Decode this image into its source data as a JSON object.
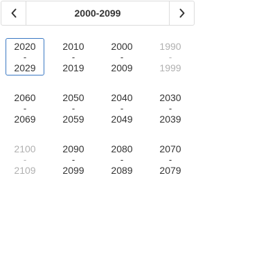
{
  "header": {
    "title": "2000-2099",
    "prev_icon": "chevron-left-icon",
    "next_icon": "chevron-right-icon"
  },
  "decades": [
    [
      {
        "start": "2020",
        "sep": "-",
        "end": "2029",
        "selected": true,
        "muted": false
      },
      {
        "start": "2010",
        "sep": "-",
        "end": "2019",
        "selected": false,
        "muted": false
      },
      {
        "start": "2000",
        "sep": "-",
        "end": "2009",
        "selected": false,
        "muted": false
      },
      {
        "start": "1990",
        "sep": "-",
        "end": "1999",
        "selected": false,
        "muted": true
      }
    ],
    [
      {
        "start": "2060",
        "sep": "-",
        "end": "2069",
        "selected": false,
        "muted": false
      },
      {
        "start": "2050",
        "sep": "-",
        "end": "2059",
        "selected": false,
        "muted": false
      },
      {
        "start": "2040",
        "sep": "-",
        "end": "2049",
        "selected": false,
        "muted": false
      },
      {
        "start": "2030",
        "sep": "-",
        "end": "2039",
        "selected": false,
        "muted": false
      }
    ],
    [
      {
        "start": "2100",
        "sep": "-",
        "end": "2109",
        "selected": false,
        "muted": true
      },
      {
        "start": "2090",
        "sep": "-",
        "end": "2099",
        "selected": false,
        "muted": false
      },
      {
        "start": "2080",
        "sep": "-",
        "end": "2089",
        "selected": false,
        "muted": false
      },
      {
        "start": "2070",
        "sep": "-",
        "end": "2079",
        "selected": false,
        "muted": false
      }
    ]
  ],
  "colors": {
    "selected_border": "#3a78c3",
    "text": "#333333",
    "muted_text": "#b0b0b0",
    "border": "#dcdcdc"
  }
}
